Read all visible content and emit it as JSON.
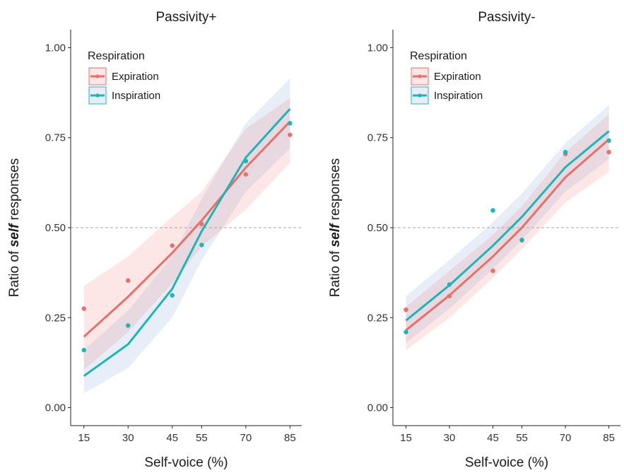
{
  "chart_data": [
    {
      "type": "line",
      "title": "Passivity+",
      "xlabel": "Self-voice (%)",
      "ylabel_parts": [
        "Ratio of ",
        "self",
        " responses"
      ],
      "x_ticks": [
        15,
        30,
        45,
        55,
        70,
        85
      ],
      "y_ticks": [
        "0.00",
        "0.25",
        "0.50",
        "0.75",
        "1.00"
      ],
      "xlim": [
        10.5,
        89
      ],
      "ylim": [
        -0.05,
        1.05
      ],
      "reference_line": 0.5,
      "legend": {
        "title": "Respiration",
        "position": "top-left"
      },
      "grid": false,
      "series": [
        {
          "name": "Expiration",
          "color": "#e8706a",
          "points": [
            [
              15,
              0.275
            ],
            [
              30,
              0.353
            ],
            [
              45,
              0.45
            ],
            [
              55,
              0.51
            ],
            [
              70,
              0.648
            ],
            [
              85,
              0.758
            ]
          ],
          "fit": [
            [
              15,
              0.197
            ],
            [
              30,
              0.308
            ],
            [
              45,
              0.43
            ],
            [
              55,
              0.52
            ],
            [
              70,
              0.667
            ],
            [
              85,
              0.795
            ]
          ],
          "ci_lower": [
            0.105,
            0.21,
            0.345,
            0.448,
            0.55,
            0.68
          ],
          "ci_upper": [
            0.338,
            0.42,
            0.53,
            0.6,
            0.775,
            0.86
          ]
        },
        {
          "name": "Inspiration",
          "color": "#1fb5b8",
          "points": [
            [
              15,
              0.16
            ],
            [
              30,
              0.228
            ],
            [
              45,
              0.312
            ],
            [
              55,
              0.452
            ],
            [
              70,
              0.685
            ],
            [
              85,
              0.79
            ]
          ],
          "fit": [
            [
              15,
              0.088
            ],
            [
              30,
              0.176
            ],
            [
              45,
              0.33
            ],
            [
              55,
              0.49
            ],
            [
              70,
              0.695
            ],
            [
              85,
              0.83
            ]
          ],
          "ci_lower": [
            0.04,
            0.11,
            0.25,
            0.41,
            0.6,
            0.72
          ],
          "ci_upper": [
            0.16,
            0.27,
            0.42,
            0.58,
            0.79,
            0.915
          ]
        }
      ]
    },
    {
      "type": "line",
      "title": "Passivity-",
      "xlabel": "Self-voice (%)",
      "ylabel_parts": [
        "Ratio of ",
        "self",
        " responses"
      ],
      "x_ticks": [
        15,
        30,
        45,
        55,
        70,
        85
      ],
      "y_ticks": [
        "0.00",
        "0.25",
        "0.50",
        "0.75",
        "1.00"
      ],
      "xlim": [
        10.5,
        89
      ],
      "ylim": [
        -0.05,
        1.05
      ],
      "reference_line": 0.5,
      "legend": {
        "title": "Respiration",
        "position": "top-left"
      },
      "grid": false,
      "series": [
        {
          "name": "Expiration",
          "color": "#e8706a",
          "points": [
            [
              15,
              0.272
            ],
            [
              30,
              0.31
            ],
            [
              45,
              0.38
            ],
            [
              55,
              0.465
            ],
            [
              70,
              0.705
            ],
            [
              85,
              0.71
            ]
          ],
          "fit": [
            [
              15,
              0.215
            ],
            [
              30,
              0.312
            ],
            [
              45,
              0.42
            ],
            [
              55,
              0.5
            ],
            [
              70,
              0.64
            ],
            [
              85,
              0.745
            ]
          ],
          "ci_lower": [
            0.16,
            0.25,
            0.36,
            0.44,
            0.57,
            0.655
          ],
          "ci_upper": [
            0.28,
            0.38,
            0.48,
            0.56,
            0.71,
            0.815
          ]
        },
        {
          "name": "Inspiration",
          "color": "#1fb5b8",
          "points": [
            [
              15,
              0.21
            ],
            [
              30,
              0.342
            ],
            [
              45,
              0.548
            ],
            [
              55,
              0.466
            ],
            [
              70,
              0.71
            ],
            [
              85,
              0.742
            ]
          ],
          "fit": [
            [
              15,
              0.242
            ],
            [
              30,
              0.34
            ],
            [
              45,
              0.45
            ],
            [
              55,
              0.53
            ],
            [
              70,
              0.668
            ],
            [
              85,
              0.768
            ]
          ],
          "ci_lower": [
            0.18,
            0.275,
            0.385,
            0.465,
            0.6,
            0.69
          ],
          "ci_upper": [
            0.31,
            0.41,
            0.515,
            0.595,
            0.735,
            0.84
          ]
        }
      ]
    }
  ]
}
